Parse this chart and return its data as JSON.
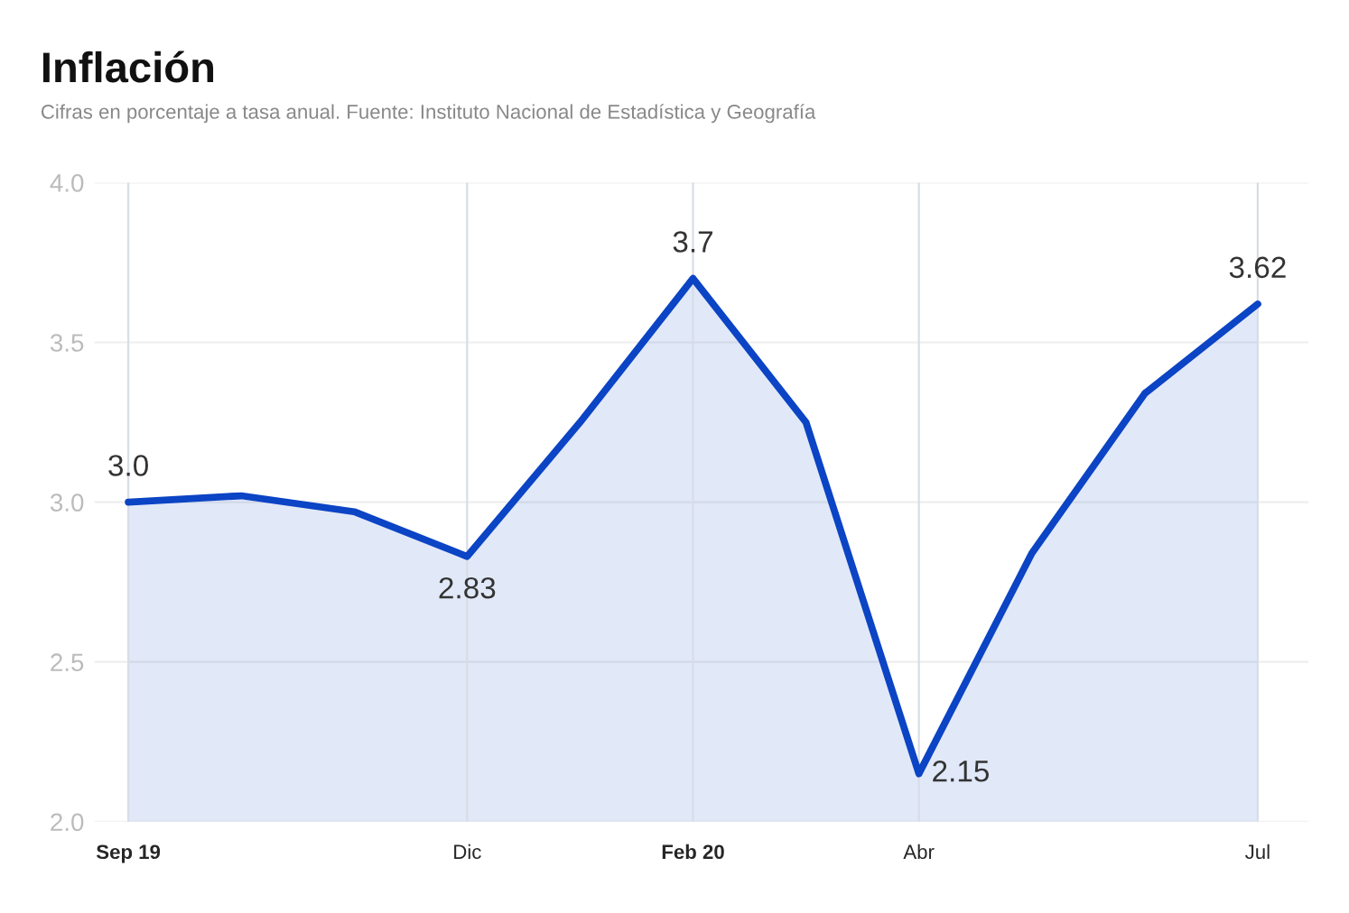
{
  "chart_data": {
    "type": "area",
    "title": "Inflación",
    "subtitle": "Cifras en porcentaje a tasa anual. Fuente: Instituto Nacional de Estadística y Geografía",
    "categories": [
      "Sep 19",
      null,
      null,
      "Dic",
      null,
      "Feb 20",
      null,
      "Abr",
      null,
      null,
      "Jul"
    ],
    "series": [
      {
        "color": "#0b44c4",
        "values": [
          3.0,
          3.02,
          2.97,
          2.83,
          3.25,
          3.7,
          3.25,
          2.15,
          2.84,
          3.34,
          3.62
        ],
        "value_labels": [
          "3.0",
          null,
          null,
          "2.83",
          null,
          "3.7",
          null,
          "2.15",
          null,
          null,
          "3.62"
        ]
      }
    ],
    "ylim": [
      2.0,
      4.0
    ],
    "yticks": [
      {
        "value": 2.0,
        "label": "2.0"
      },
      {
        "value": 2.5,
        "label": "2.5"
      },
      {
        "value": 3.0,
        "label": "3.0"
      },
      {
        "value": 3.5,
        "label": "3.5"
      },
      {
        "value": 4.0,
        "label": "4.0"
      }
    ],
    "grid": true,
    "legend": false,
    "line_style": "solid"
  }
}
